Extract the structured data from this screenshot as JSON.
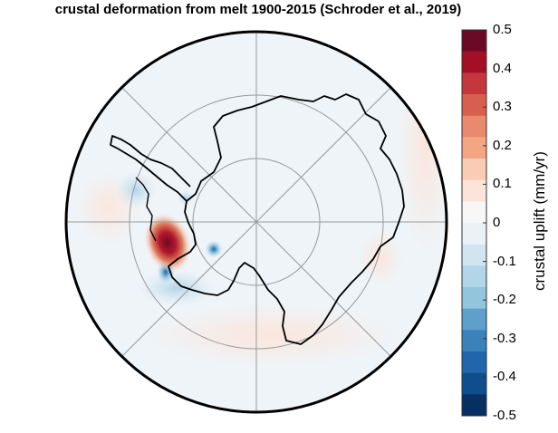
{
  "title": "crustal deformation from melt 1900-2015 (Schroder et al., 2019)",
  "colorbar": {
    "label": "crustal uplift (mm/yr)",
    "ticks": [
      "0.5",
      "0.4",
      "0.3",
      "0.2",
      "0.1",
      "0",
      "-0.1",
      "-0.2",
      "-0.3",
      "-0.4",
      "-0.5"
    ],
    "colors": [
      "#6b0a24",
      "#a50f26",
      "#c4373d",
      "#d6604d",
      "#e98a6f",
      "#f4a582",
      "#fbccb4",
      "#fde4d8",
      "#f7f7f7",
      "#eaf2f7",
      "#d1e5f0",
      "#b3d5e8",
      "#92c5de",
      "#5f9fcc",
      "#3b82bb",
      "#2166ac",
      "#0f4e8c",
      "#053061"
    ]
  },
  "map": {
    "projection": "south-polar-stereographic",
    "region": "Antarctica",
    "background_color": "#eef4f8",
    "graticule": "meridians every 45°, parallels"
  }
}
